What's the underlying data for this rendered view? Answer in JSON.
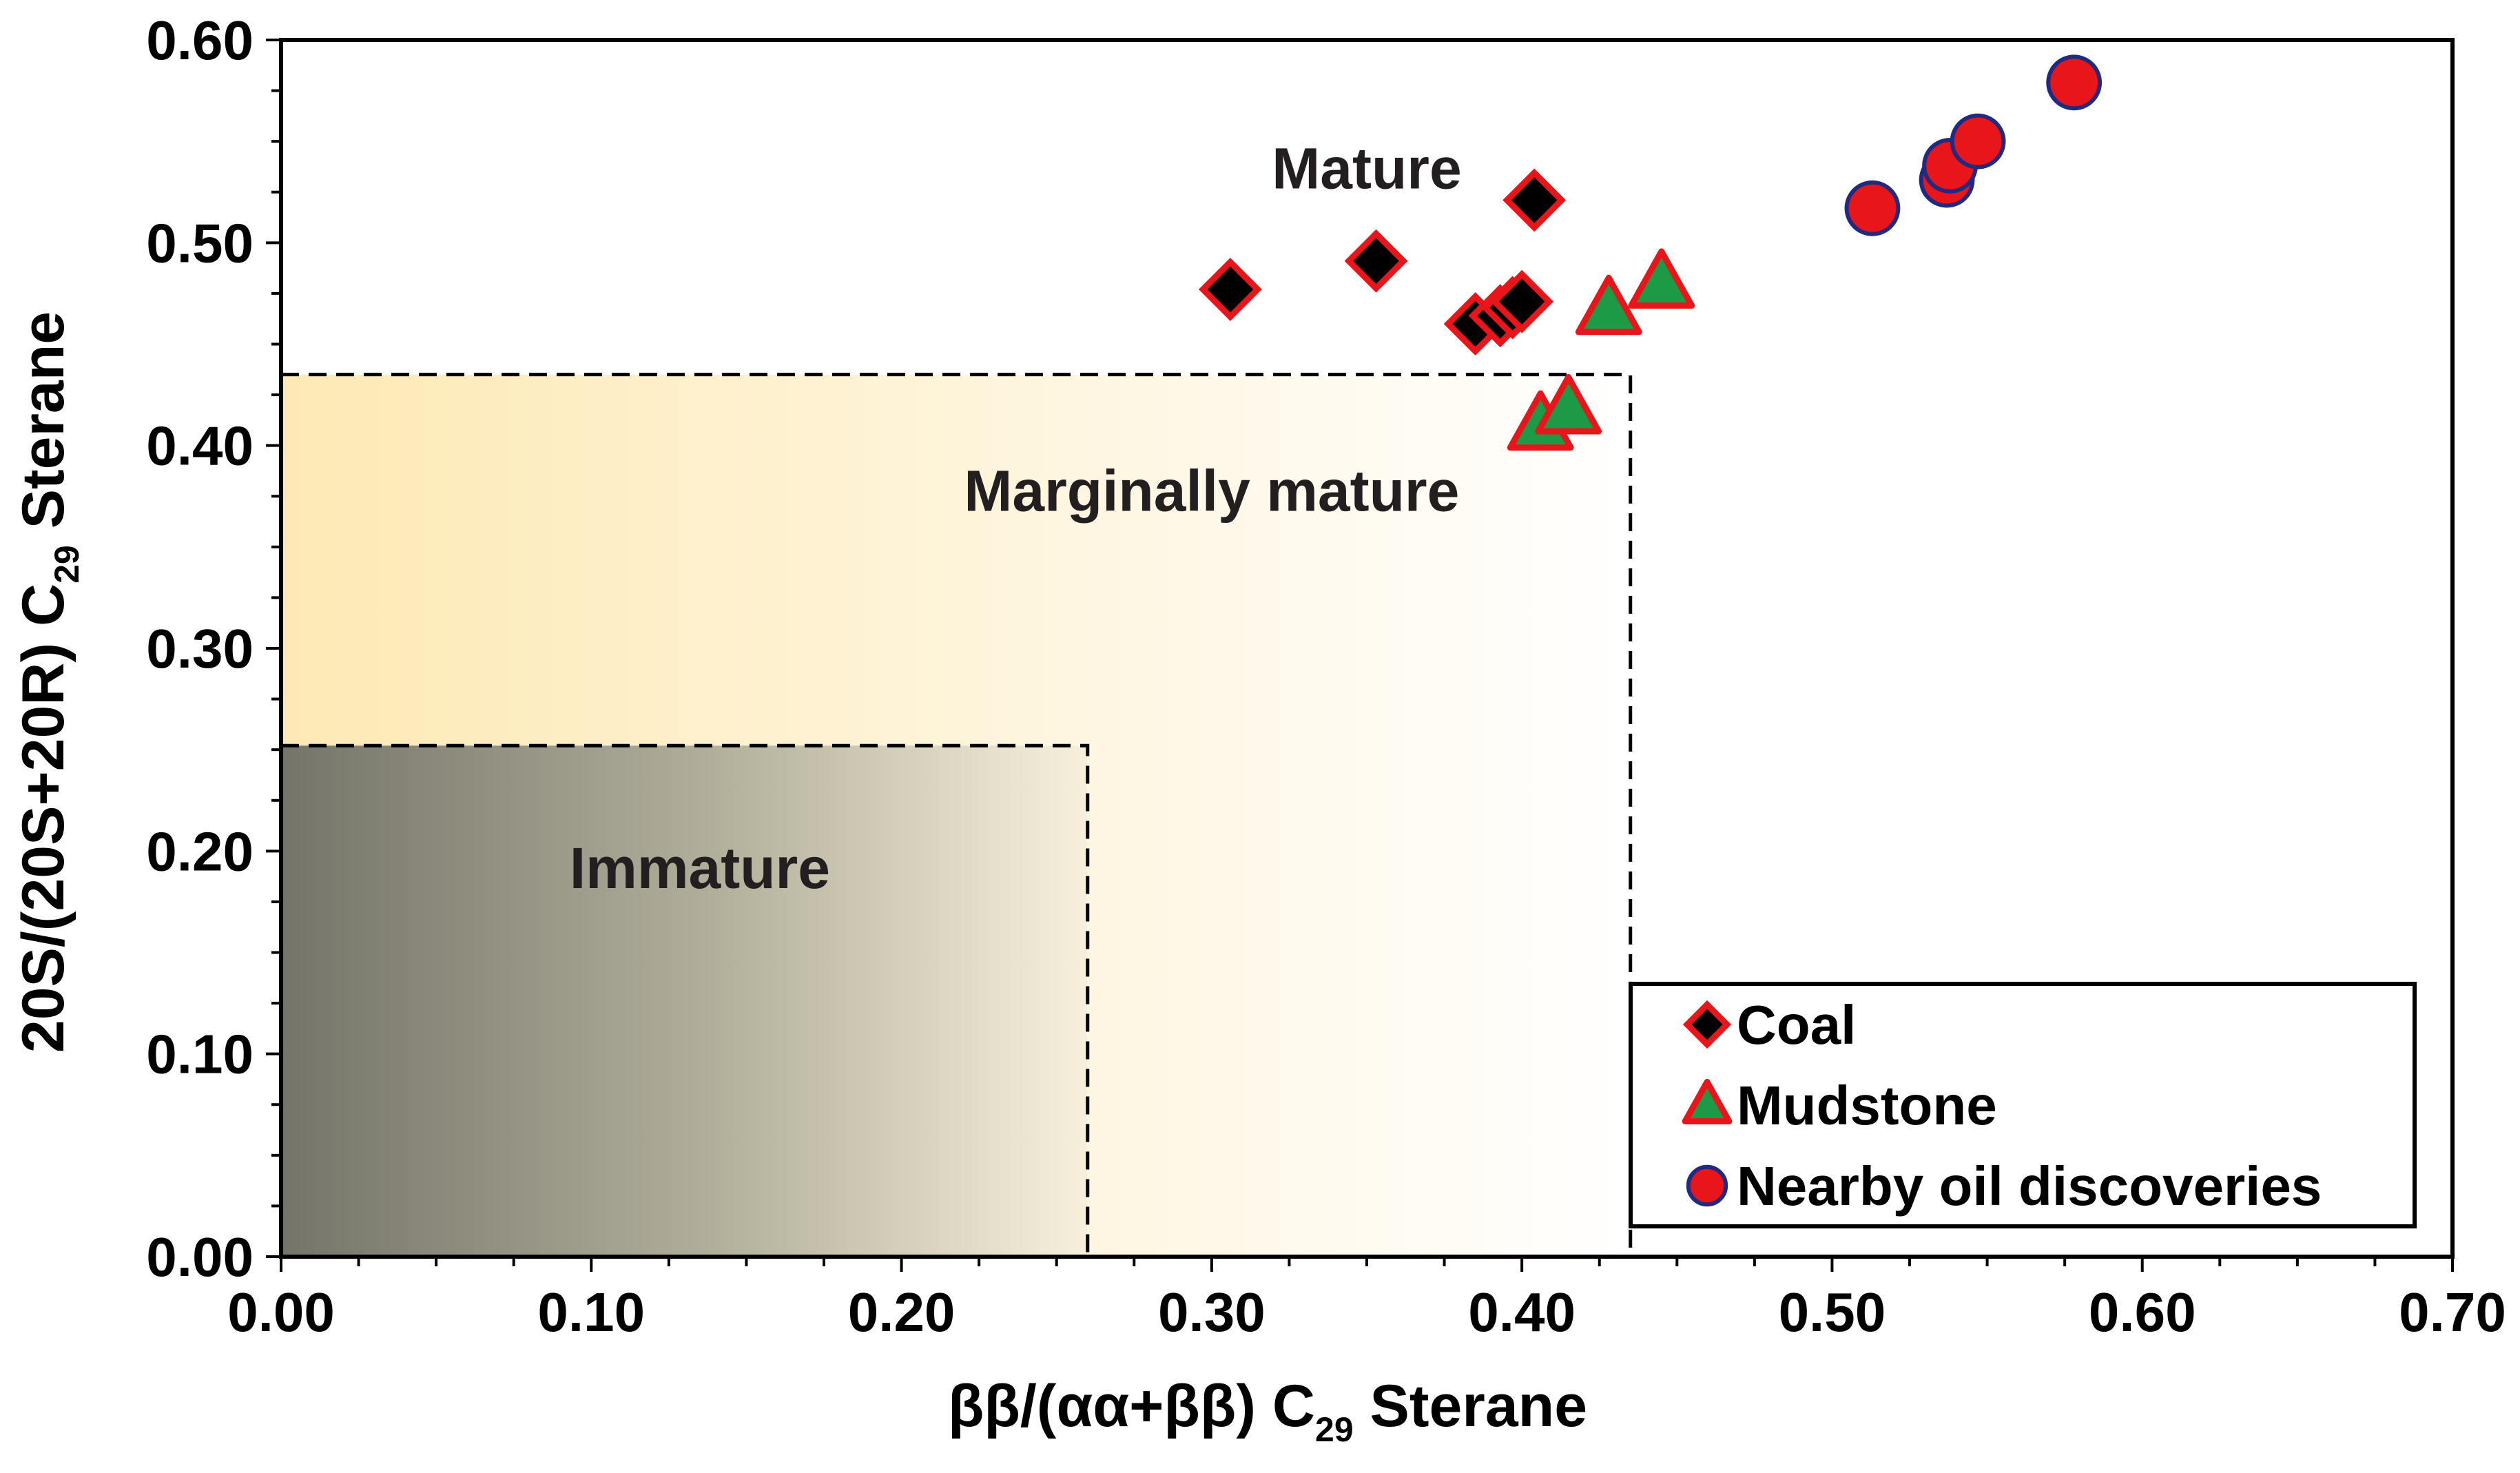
{
  "chart_data": {
    "type": "scatter",
    "title": "",
    "xlabel": {
      "main": "ββ/(αα+ββ) C",
      "sub": "29",
      "suffix": " Sterane"
    },
    "ylabel": {
      "main": "20S/(20S+20R) C",
      "sub": "29",
      "suffix": " Sterane"
    },
    "xlim": [
      0.0,
      0.7
    ],
    "ylim": [
      0.0,
      0.6
    ],
    "xticks": [
      "0.00",
      "0.10",
      "0.20",
      "0.30",
      "0.40",
      "0.50",
      "0.60",
      "0.70"
    ],
    "yticks": [
      "0.00",
      "0.10",
      "0.20",
      "0.30",
      "0.40",
      "0.50",
      "0.60"
    ],
    "xticks_values": [
      0.0,
      0.1,
      0.2,
      0.3,
      0.4,
      0.5,
      0.6,
      0.7
    ],
    "yticks_values": [
      0.0,
      0.1,
      0.2,
      0.3,
      0.4,
      0.5,
      0.6
    ],
    "grid": false,
    "legend_position": "bottom-right",
    "regions": [
      {
        "name": "Marginally mature",
        "label": "Marginally mature",
        "x_max": 0.435,
        "y_max": 0.435,
        "fill_from": "#fde9b4",
        "fill_to": "#ffffff",
        "label_at": [
          0.3,
          0.378
        ]
      },
      {
        "name": "Immature",
        "label": "Immature",
        "x_max": 0.26,
        "y_max": 0.252,
        "fill_from": "#747469",
        "fill_to": "#f7f0dc",
        "label_at": [
          0.135,
          0.192
        ]
      }
    ],
    "annotations": [
      {
        "text": "Mature",
        "x": 0.35,
        "y": 0.537
      }
    ],
    "series": [
      {
        "name": "Coal",
        "marker": "diamond",
        "fill": "#000000",
        "stroke": "#e8151b",
        "points": [
          [
            0.306,
            0.477
          ],
          [
            0.353,
            0.491
          ],
          [
            0.385,
            0.46
          ],
          [
            0.393,
            0.464
          ],
          [
            0.397,
            0.468
          ],
          [
            0.4,
            0.471
          ],
          [
            0.404,
            0.521
          ]
        ]
      },
      {
        "name": "Mudstone",
        "marker": "triangle",
        "fill": "#1d9a45",
        "stroke": "#e8151b",
        "points": [
          [
            0.406,
            0.41
          ],
          [
            0.415,
            0.418
          ],
          [
            0.428,
            0.467
          ],
          [
            0.445,
            0.48
          ]
        ]
      },
      {
        "name": "Nearby oil discoveries",
        "marker": "circle",
        "fill": "#e8151b",
        "stroke": "#1f2a80",
        "points": [
          [
            0.513,
            0.517
          ],
          [
            0.537,
            0.531
          ],
          [
            0.538,
            0.538
          ],
          [
            0.547,
            0.55
          ],
          [
            0.578,
            0.579
          ]
        ]
      }
    ]
  }
}
